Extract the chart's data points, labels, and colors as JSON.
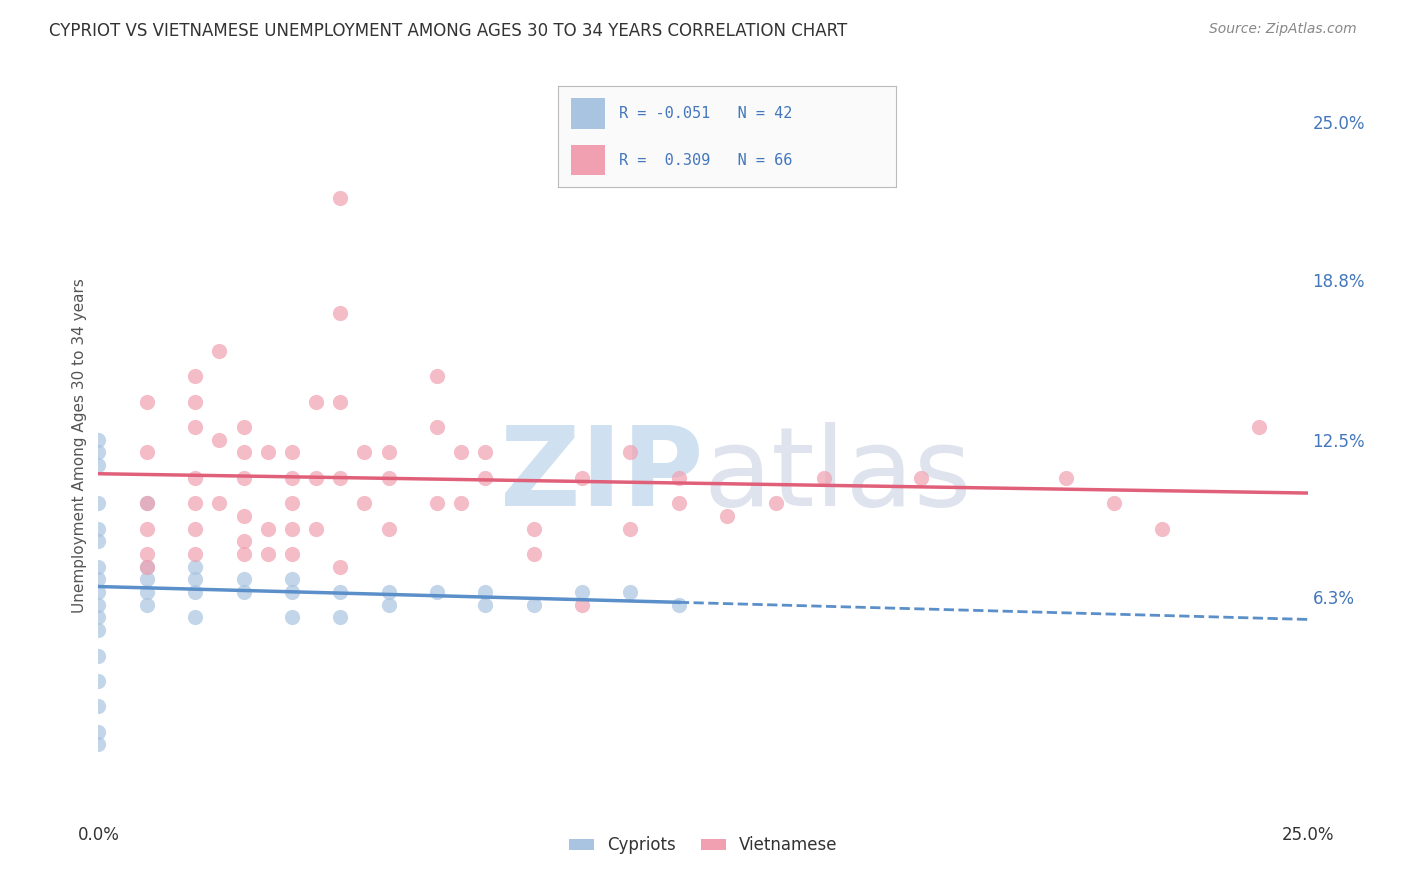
{
  "title": "CYPRIOT VS VIETNAMESE UNEMPLOYMENT AMONG AGES 30 TO 34 YEARS CORRELATION CHART",
  "source": "Source: ZipAtlas.com",
  "ylabel": "Unemployment Among Ages 30 to 34 years",
  "xlim": [
    0.0,
    0.25
  ],
  "ylim": [
    -0.025,
    0.27
  ],
  "xtick_pos": [
    0.0,
    0.05,
    0.1,
    0.15,
    0.2,
    0.25
  ],
  "xtick_labels": [
    "0.0%",
    "",
    "",
    "",
    "",
    "25.0%"
  ],
  "ytick_labels_right": [
    "25.0%",
    "18.8%",
    "12.5%",
    "6.3%"
  ],
  "ytick_vals_right": [
    0.25,
    0.188,
    0.125,
    0.063
  ],
  "cypriot_R": "-0.051",
  "cypriot_N": "42",
  "vietnamese_R": "0.309",
  "vietnamese_N": "66",
  "cypriot_color": "#a8c4e0",
  "vietnamese_color": "#f0a0b0",
  "cypriot_line_color": "#5b8fc9",
  "vietnamese_line_color": "#e0607a",
  "legend_label_cypriot": "Cypriots",
  "legend_label_vietnamese": "Vietnamese",
  "background_color": "#ffffff",
  "grid_color": "#d8d8d8",
  "right_axis_color": "#4477bb",
  "cypriot_x": [
    0.0,
    0.0,
    0.0,
    0.0,
    0.0,
    0.0,
    0.0,
    0.0,
    0.0,
    0.0,
    0.0,
    0.0,
    0.0,
    0.0,
    0.0,
    0.0,
    0.0,
    0.01,
    0.01,
    0.01,
    0.01,
    0.01,
    0.02,
    0.02,
    0.02,
    0.02,
    0.03,
    0.03,
    0.04,
    0.04,
    0.04,
    0.05,
    0.05,
    0.06,
    0.06,
    0.07,
    0.08,
    0.08,
    0.09,
    0.1,
    0.11,
    0.12
  ],
  "cypriot_y": [
    0.125,
    0.12,
    0.115,
    0.1,
    0.09,
    0.085,
    0.075,
    0.07,
    0.065,
    0.06,
    0.055,
    0.05,
    0.04,
    0.03,
    0.02,
    0.01,
    0.005,
    0.1,
    0.075,
    0.07,
    0.065,
    0.06,
    0.075,
    0.07,
    0.065,
    0.055,
    0.07,
    0.065,
    0.07,
    0.065,
    0.055,
    0.065,
    0.055,
    0.065,
    0.06,
    0.065,
    0.065,
    0.06,
    0.06,
    0.065,
    0.065,
    0.06
  ],
  "vietnamese_x": [
    0.01,
    0.01,
    0.01,
    0.01,
    0.01,
    0.01,
    0.02,
    0.02,
    0.02,
    0.02,
    0.02,
    0.02,
    0.02,
    0.025,
    0.025,
    0.03,
    0.03,
    0.03,
    0.03,
    0.03,
    0.035,
    0.035,
    0.04,
    0.04,
    0.04,
    0.04,
    0.04,
    0.045,
    0.045,
    0.05,
    0.05,
    0.05,
    0.05,
    0.055,
    0.055,
    0.06,
    0.06,
    0.06,
    0.07,
    0.07,
    0.07,
    0.075,
    0.075,
    0.08,
    0.08,
    0.09,
    0.09,
    0.1,
    0.1,
    0.11,
    0.11,
    0.12,
    0.12,
    0.13,
    0.14,
    0.15,
    0.17,
    0.2,
    0.21,
    0.22,
    0.24,
    0.05,
    0.035,
    0.045,
    0.025,
    0.03
  ],
  "vietnamese_y": [
    0.14,
    0.12,
    0.1,
    0.09,
    0.08,
    0.075,
    0.15,
    0.14,
    0.13,
    0.11,
    0.1,
    0.09,
    0.08,
    0.16,
    0.1,
    0.13,
    0.12,
    0.11,
    0.095,
    0.085,
    0.12,
    0.09,
    0.12,
    0.11,
    0.1,
    0.09,
    0.08,
    0.11,
    0.09,
    0.175,
    0.14,
    0.11,
    0.075,
    0.12,
    0.1,
    0.12,
    0.11,
    0.09,
    0.15,
    0.13,
    0.1,
    0.12,
    0.1,
    0.12,
    0.11,
    0.09,
    0.08,
    0.11,
    0.06,
    0.12,
    0.09,
    0.11,
    0.1,
    0.095,
    0.1,
    0.11,
    0.11,
    0.11,
    0.1,
    0.09,
    0.13,
    0.22,
    0.08,
    0.14,
    0.125,
    0.08
  ]
}
